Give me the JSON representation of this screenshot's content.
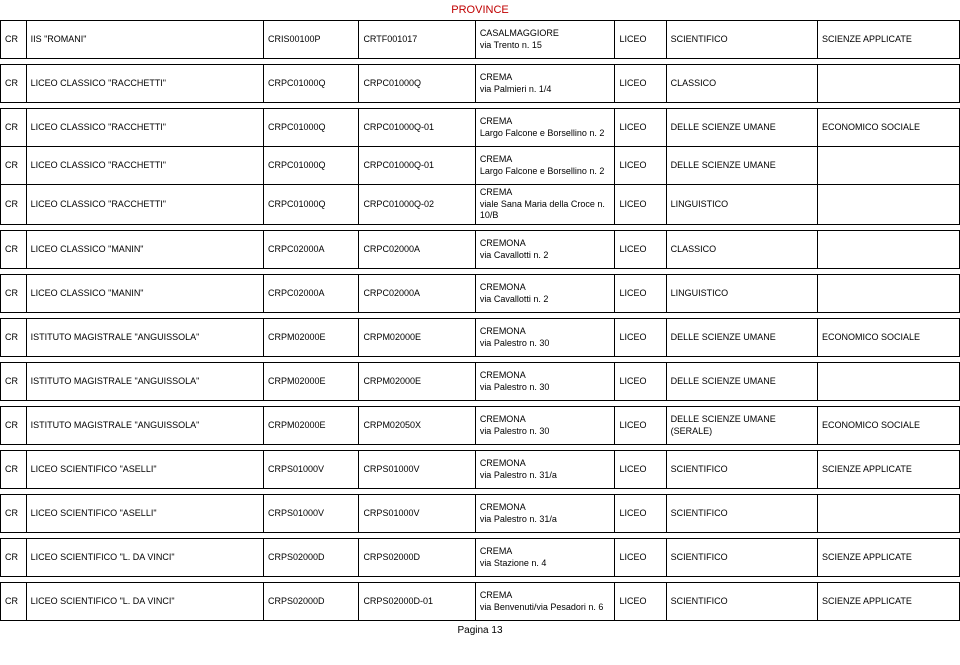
{
  "title": "PROVINCE",
  "footer": "Pagina 13",
  "rows": [
    {
      "prov": "CR",
      "school": "IIS \"ROMANI\"",
      "code1": "CRIS00100P",
      "code2": "CRTF001017",
      "addr": "CASALMAGGIORE\nvia Trento n. 15",
      "liceo": "LICEO",
      "ind": "SCIENTIFICO",
      "art": "SCIENZE APPLICATE",
      "gap": true
    },
    {
      "prov": "CR",
      "school": "LICEO CLASSICO \"RACCHETTI\"",
      "code1": "CRPC01000Q",
      "code2": "CRPC01000Q",
      "addr": "CREMA\nvia Palmieri n. 1/4",
      "liceo": "LICEO",
      "ind": "CLASSICO",
      "art": "",
      "gap": true
    },
    {
      "prov": "CR",
      "school": "LICEO CLASSICO \"RACCHETTI\"",
      "code1": "CRPC01000Q",
      "code2": "CRPC01000Q-01",
      "addr": "CREMA\nLargo Falcone e Borsellino n. 2",
      "liceo": "LICEO",
      "ind": "DELLE SCIENZE UMANE",
      "art": "ECONOMICO SOCIALE"
    },
    {
      "prov": "CR",
      "school": "LICEO CLASSICO \"RACCHETTI\"",
      "code1": "CRPC01000Q",
      "code2": "CRPC01000Q-01",
      "addr": "CREMA\nLargo Falcone e Borsellino n. 2",
      "liceo": "LICEO",
      "ind": "DELLE SCIENZE UMANE",
      "art": ""
    },
    {
      "prov": "CR",
      "school": "LICEO CLASSICO \"RACCHETTI\"",
      "code1": "CRPC01000Q",
      "code2": "CRPC01000Q-02",
      "addr": "CREMA\nviale Sana Maria della Croce n. 10/B",
      "liceo": "LICEO",
      "ind": "LINGUISTICO",
      "art": "",
      "gap": true
    },
    {
      "prov": "CR",
      "school": "LICEO CLASSICO \"MANIN\"",
      "code1": "CRPC02000A",
      "code2": "CRPC02000A",
      "addr": "CREMONA\nvia Cavallotti n. 2",
      "liceo": "LICEO",
      "ind": "CLASSICO",
      "art": "",
      "gap": true
    },
    {
      "prov": "CR",
      "school": "LICEO CLASSICO \"MANIN\"",
      "code1": "CRPC02000A",
      "code2": "CRPC02000A",
      "addr": "CREMONA\nvia Cavallotti n. 2",
      "liceo": "LICEO",
      "ind": "LINGUISTICO",
      "art": "",
      "gap": true
    },
    {
      "prov": "CR",
      "school": "ISTITUTO MAGISTRALE \"ANGUISSOLA\"",
      "code1": "CRPM02000E",
      "code2": "CRPM02000E",
      "addr": "CREMONA\nvia Palestro n. 30",
      "liceo": "LICEO",
      "ind": "DELLE SCIENZE UMANE",
      "art": "ECONOMICO SOCIALE",
      "gap": true
    },
    {
      "prov": "CR",
      "school": "ISTITUTO MAGISTRALE \"ANGUISSOLA\"",
      "code1": "CRPM02000E",
      "code2": "CRPM02000E",
      "addr": "CREMONA\nvia Palestro n. 30",
      "liceo": "LICEO",
      "ind": "DELLE SCIENZE UMANE",
      "art": "",
      "gap": true
    },
    {
      "prov": "CR",
      "school": "ISTITUTO MAGISTRALE \"ANGUISSOLA\"",
      "code1": "CRPM02000E",
      "code2": "CRPM02050X",
      "addr": "CREMONA\nvia Palestro n. 30",
      "liceo": "LICEO",
      "ind": "DELLE SCIENZE UMANE (SERALE)",
      "art": "ECONOMICO SOCIALE",
      "gap": true
    },
    {
      "prov": "CR",
      "school": "LICEO SCIENTIFICO \"ASELLI\"",
      "code1": "CRPS01000V",
      "code2": "CRPS01000V",
      "addr": "CREMONA\nvia Palestro n. 31/a",
      "liceo": "LICEO",
      "ind": "SCIENTIFICO",
      "art": "SCIENZE APPLICATE",
      "gap": true
    },
    {
      "prov": "CR",
      "school": "LICEO SCIENTIFICO \"ASELLI\"",
      "code1": "CRPS01000V",
      "code2": "CRPS01000V",
      "addr": "CREMONA\nvia Palestro n. 31/a",
      "liceo": "LICEO",
      "ind": "SCIENTIFICO",
      "art": "",
      "gap": true
    },
    {
      "prov": "CR",
      "school": "LICEO SCIENTIFICO \"L. DA VINCI\"",
      "code1": "CRPS02000D",
      "code2": "CRPS02000D",
      "addr": "CREMA\nvia Stazione n. 4",
      "liceo": "LICEO",
      "ind": "SCIENTIFICO",
      "art": "SCIENZE APPLICATE",
      "gap": true
    },
    {
      "prov": "CR",
      "school": "LICEO SCIENTIFICO \"L. DA VINCI\"",
      "code1": "CRPS02000D",
      "code2": "CRPS02000D-01",
      "addr": "CREMA\nvia Benvenuti/via Pesadori n. 6",
      "liceo": "LICEO",
      "ind": "SCIENTIFICO",
      "art": "SCIENZE APPLICATE"
    }
  ]
}
